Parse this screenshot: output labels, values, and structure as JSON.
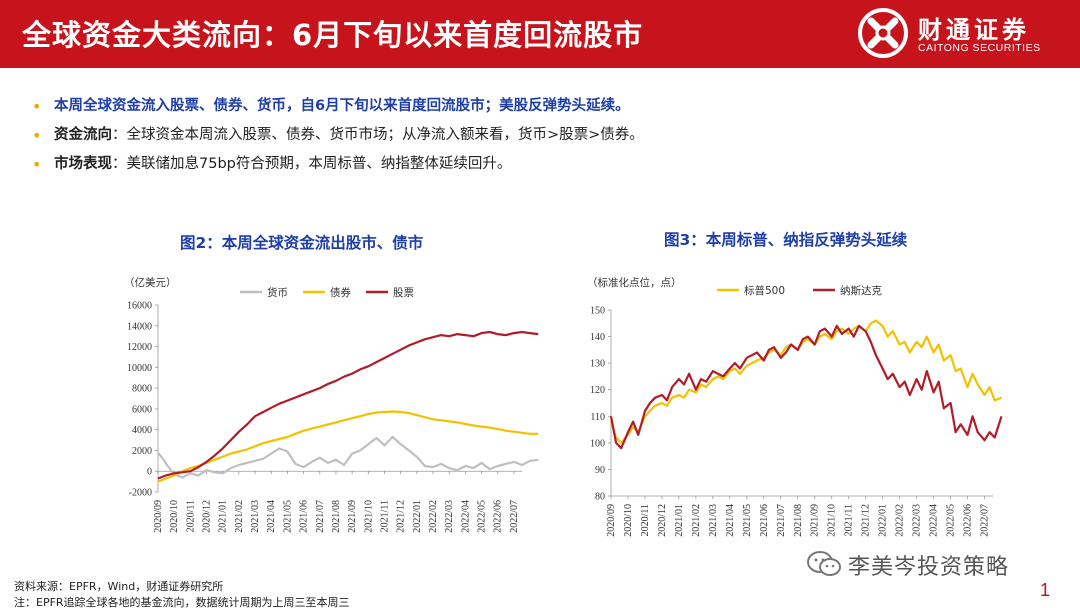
{
  "header": {
    "title": "全球资金大类流向：6月下旬以来首度回流股市",
    "logo_cn": "财通证券",
    "logo_en": "CAITONG SECURITIES"
  },
  "bullets": [
    {
      "key": "",
      "text": "本周全球资金流入股票、债券、货币，自6月下旬以来首度回流股市；美股反弹势头延续。"
    },
    {
      "key": "资金流向",
      "text": "：全球资金本周流入股票、债券、货币市场；从净流入额来看，货币>股票>债券。"
    },
    {
      "key": "市场表现",
      "text": "：美联储加息75bp符合预期，本周标普、纳指整体延续回升。"
    }
  ],
  "chart_data": [
    {
      "type": "line",
      "title": "图2：本周全球资金流出股市、债市",
      "unit": "（亿美元）",
      "ylim": [
        -2000,
        16000
      ],
      "yticks": [
        -2000,
        0,
        2000,
        4000,
        6000,
        8000,
        10000,
        12000,
        14000,
        16000
      ],
      "categories": [
        "2020/09",
        "2020/10",
        "2020/11",
        "2020/12",
        "2021/01",
        "2021/02",
        "2021/03",
        "2021/04",
        "2021/05",
        "2021/06",
        "2021/07",
        "2021/08",
        "2021/09",
        "2021/10",
        "2021/11",
        "2021/12",
        "2022/01",
        "2022/02",
        "2022/03",
        "2022/04",
        "2022/05",
        "2022/06",
        "2022/07"
      ],
      "series": [
        {
          "name": "货币",
          "color": "#bfbfbf",
          "x": [
            0,
            0.3,
            0.6,
            1,
            1.5,
            2,
            2.5,
            3,
            3.5,
            4,
            4.5,
            5,
            5.5,
            6,
            6.5,
            7,
            7.5,
            8,
            8.5,
            9,
            9.5,
            10,
            10.5,
            11,
            11.5,
            12,
            12.5,
            13,
            13.5,
            14,
            14.5,
            15,
            15.5,
            16,
            16.5,
            17,
            17.5,
            18,
            18.5,
            19,
            19.5,
            20,
            20.5,
            21,
            21.5,
            22,
            22.5,
            23,
            23.5
          ],
          "values": [
            1800,
            1200,
            500,
            -300,
            -600,
            -200,
            -400,
            100,
            -100,
            -200,
            300,
            600,
            800,
            1000,
            1200,
            1700,
            2200,
            1900,
            700,
            400,
            900,
            1300,
            800,
            1100,
            600,
            1700,
            2000,
            2600,
            3200,
            2500,
            3300,
            2600,
            2000,
            1400,
            500,
            400,
            700,
            300,
            100,
            500,
            300,
            800,
            200,
            500,
            700,
            900,
            600,
            1000,
            1100
          ]
        },
        {
          "name": "债券",
          "color": "#f2c200",
          "x": [
            0,
            0.5,
            1,
            1.5,
            2,
            2.5,
            3,
            3.5,
            4,
            4.5,
            5,
            5.5,
            6,
            6.5,
            7,
            7.5,
            8,
            8.5,
            9,
            9.5,
            10,
            10.5,
            11,
            11.5,
            12,
            12.5,
            13,
            13.5,
            14,
            14.5,
            15,
            15.5,
            16,
            16.5,
            17,
            17.5,
            18,
            18.5,
            19,
            19.5,
            20,
            20.5,
            21,
            21.5,
            22,
            22.5,
            23,
            23.5
          ],
          "values": [
            -1000,
            -700,
            -400,
            0,
            300,
            500,
            800,
            1100,
            1400,
            1700,
            1900,
            2100,
            2400,
            2700,
            2900,
            3100,
            3300,
            3600,
            3900,
            4100,
            4300,
            4500,
            4700,
            4900,
            5100,
            5300,
            5500,
            5650,
            5700,
            5750,
            5700,
            5600,
            5400,
            5200,
            5000,
            4900,
            4800,
            4700,
            4550,
            4400,
            4300,
            4200,
            4050,
            3900,
            3800,
            3700,
            3600,
            3600
          ]
        },
        {
          "name": "股票",
          "color": "#b01c2a",
          "x": [
            0,
            0.5,
            1,
            1.5,
            2,
            2.5,
            3,
            3.5,
            4,
            4.5,
            5,
            5.5,
            6,
            6.5,
            7,
            7.5,
            8,
            8.5,
            9,
            9.5,
            10,
            10.5,
            11,
            11.5,
            12,
            12.5,
            13,
            13.5,
            14,
            14.5,
            15,
            15.5,
            16,
            16.5,
            17,
            17.5,
            18,
            18.5,
            19,
            19.5,
            20,
            20.5,
            21,
            21.5,
            22,
            22.5,
            23,
            23.5
          ],
          "values": [
            -700,
            -400,
            -200,
            -100,
            0,
            400,
            900,
            1500,
            2200,
            3000,
            3800,
            4500,
            5300,
            5700,
            6100,
            6500,
            6800,
            7100,
            7400,
            7700,
            8000,
            8400,
            8700,
            9100,
            9400,
            9800,
            10100,
            10500,
            10900,
            11300,
            11700,
            12100,
            12400,
            12700,
            12900,
            13100,
            13000,
            13200,
            13100,
            13000,
            13300,
            13400,
            13200,
            13100,
            13300,
            13400,
            13300,
            13200
          ]
        }
      ]
    },
    {
      "type": "line",
      "title": "图3：本周标普、纳指反弹势头延续",
      "unit": "（标准化点位，点）",
      "ylim": [
        80,
        150
      ],
      "yticks": [
        80,
        90,
        100,
        110,
        120,
        130,
        140,
        150
      ],
      "categories": [
        "2020/09",
        "2020/10",
        "2020/11",
        "2020/12",
        "2021/01",
        "2021/02",
        "2021/03",
        "2021/04",
        "2021/05",
        "2021/06",
        "2021/07",
        "2021/08",
        "2021/09",
        "2021/10",
        "2021/11",
        "2021/12",
        "2022/01",
        "2022/02",
        "2022/03",
        "2022/04",
        "2022/05",
        "2022/06",
        "2022/07"
      ],
      "series": [
        {
          "name": "标普500",
          "color": "#f2c200",
          "x": [
            0,
            0.3,
            0.6,
            1,
            1.3,
            1.6,
            2,
            2.3,
            2.6,
            3,
            3.3,
            3.6,
            4,
            4.3,
            4.6,
            5,
            5.3,
            5.6,
            6,
            6.3,
            6.6,
            7,
            7.3,
            7.6,
            8,
            8.3,
            8.6,
            9,
            9.3,
            9.6,
            10,
            10.3,
            10.6,
            11,
            11.3,
            11.6,
            12,
            12.3,
            12.6,
            13,
            13.3,
            13.6,
            14,
            14.3,
            14.6,
            15,
            15.3,
            15.6,
            16,
            16.3,
            16.6,
            17,
            17.3,
            17.6,
            18,
            18.3,
            18.6,
            19,
            19.3,
            19.6,
            20,
            20.3,
            20.6,
            21,
            21.3,
            21.6,
            22,
            22.3,
            22.6,
            23
          ],
          "values": [
            108,
            102,
            100,
            103,
            106,
            104,
            110,
            112,
            114,
            115,
            114,
            117,
            118,
            117,
            120,
            119,
            122,
            121,
            124,
            125,
            124,
            127,
            128,
            126,
            129,
            130,
            131,
            132,
            134,
            135,
            133,
            136,
            137,
            135,
            138,
            139,
            137,
            140,
            141,
            139,
            142,
            143,
            141,
            143,
            144,
            142,
            145,
            146,
            144,
            140,
            142,
            137,
            138,
            134,
            138,
            136,
            140,
            134,
            137,
            131,
            133,
            127,
            128,
            121,
            126,
            122,
            118,
            121,
            116,
            117
          ]
        },
        {
          "name": "纳斯达克",
          "color": "#b01c2a",
          "x": [
            0,
            0.3,
            0.6,
            1,
            1.3,
            1.6,
            2,
            2.3,
            2.6,
            3,
            3.3,
            3.6,
            4,
            4.3,
            4.6,
            5,
            5.3,
            5.6,
            6,
            6.3,
            6.6,
            7,
            7.3,
            7.6,
            8,
            8.3,
            8.6,
            9,
            9.3,
            9.6,
            10,
            10.3,
            10.6,
            11,
            11.3,
            11.6,
            12,
            12.3,
            12.6,
            13,
            13.3,
            13.6,
            14,
            14.3,
            14.6,
            15,
            15.3,
            15.6,
            16,
            16.3,
            16.6,
            17,
            17.3,
            17.6,
            18,
            18.3,
            18.6,
            19,
            19.3,
            19.6,
            20,
            20.3,
            20.6,
            21,
            21.3,
            21.6,
            22,
            22.3,
            22.6,
            23
          ],
          "values": [
            110,
            100,
            98,
            104,
            108,
            103,
            112,
            115,
            117,
            118,
            116,
            121,
            124,
            122,
            126,
            120,
            124,
            123,
            127,
            126,
            125,
            128,
            130,
            128,
            132,
            133,
            134,
            131,
            135,
            136,
            132,
            134,
            137,
            135,
            139,
            140,
            137,
            142,
            143,
            140,
            144,
            141,
            143,
            140,
            144,
            142,
            138,
            133,
            128,
            124,
            126,
            121,
            123,
            118,
            124,
            120,
            127,
            119,
            123,
            113,
            115,
            104,
            107,
            103,
            110,
            104,
            101,
            104,
            102,
            110
          ]
        }
      ]
    }
  ],
  "footnotes": [
    "资料来源：EPFR，Wind，财通证券研究所",
    "注：EPFR追踪全球各地的基金流向，数据统计周期为上周三至本周三"
  ],
  "watermark": "李美岑投资策略",
  "page_number": "1"
}
